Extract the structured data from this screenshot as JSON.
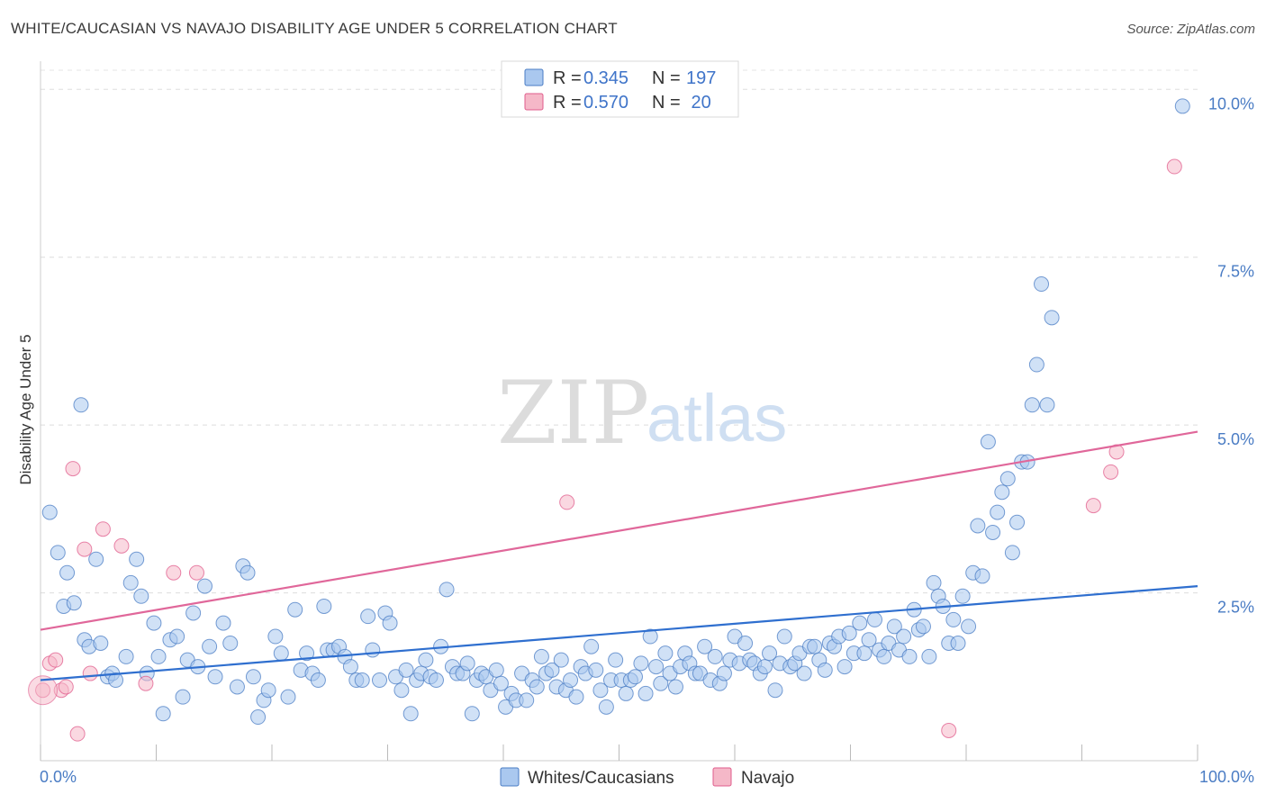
{
  "title": "WHITE/CAUCASIAN VS NAVAJO DISABILITY AGE UNDER 5 CORRELATION CHART",
  "source": "Source: ZipAtlas.com",
  "watermark": {
    "part1": "ZIP",
    "part2": "atlas"
  },
  "legend_top": [
    {
      "r_label": "R = ",
      "r_value": "0.345",
      "n_label": "N = ",
      "n_value": "197",
      "color": "#aac8ef"
    },
    {
      "r_label": "R = ",
      "r_value": "0.570",
      "n_label": "N = ",
      "n_value": " 20",
      "color": "#f5b8c8"
    }
  ],
  "legend_bottom": [
    {
      "label": "Whites/Caucasians",
      "color": "#aac8ef"
    },
    {
      "label": "Navajo",
      "color": "#f5b8c8"
    }
  ],
  "chart_data": {
    "type": "scatter",
    "title": "WHITE/CAUCASIAN VS NAVAJO DISABILITY AGE UNDER 5 CORRELATION CHART",
    "xlabel": "",
    "ylabel": "Disability Age Under 5",
    "xlim": [
      0,
      100
    ],
    "ylim": [
      0,
      10.5
    ],
    "x_tick_labels": [
      "0.0%",
      "100.0%"
    ],
    "y_ticks": [
      2.5,
      5.0,
      7.5,
      10.0
    ],
    "y_tick_labels": [
      "2.5%",
      "5.0%",
      "7.5%",
      "10.0%"
    ],
    "grid": true,
    "legend_position": "top-center",
    "series": [
      {
        "name": "Whites/Caucasians",
        "color": "#4a7cc4",
        "fill": "#aac8ef",
        "r": 0.345,
        "n": 197,
        "trend": [
          [
            0,
            1.2
          ],
          [
            100,
            2.6
          ]
        ],
        "points": [
          [
            0.8,
            3.7
          ],
          [
            1.5,
            3.1
          ],
          [
            2.0,
            2.3
          ],
          [
            2.3,
            2.8
          ],
          [
            2.9,
            2.35
          ],
          [
            3.5,
            5.3
          ],
          [
            3.8,
            1.8
          ],
          [
            4.2,
            1.7
          ],
          [
            4.8,
            3.0
          ],
          [
            5.2,
            1.75
          ],
          [
            5.8,
            1.25
          ],
          [
            6.2,
            1.3
          ],
          [
            6.5,
            1.2
          ],
          [
            7.4,
            1.55
          ],
          [
            7.8,
            2.65
          ],
          [
            8.3,
            3.0
          ],
          [
            8.7,
            2.45
          ],
          [
            9.2,
            1.3
          ],
          [
            9.8,
            2.05
          ],
          [
            10.2,
            1.55
          ],
          [
            10.6,
            0.7
          ],
          [
            11.2,
            1.8
          ],
          [
            11.8,
            1.85
          ],
          [
            12.3,
            0.95
          ],
          [
            12.7,
            1.5
          ],
          [
            13.2,
            2.2
          ],
          [
            13.6,
            1.4
          ],
          [
            14.2,
            2.6
          ],
          [
            14.6,
            1.7
          ],
          [
            15.1,
            1.25
          ],
          [
            15.8,
            2.05
          ],
          [
            16.4,
            1.75
          ],
          [
            17.0,
            1.1
          ],
          [
            17.5,
            2.9
          ],
          [
            17.9,
            2.8
          ],
          [
            18.4,
            1.25
          ],
          [
            18.8,
            0.65
          ],
          [
            19.3,
            0.9
          ],
          [
            19.7,
            1.05
          ],
          [
            20.3,
            1.85
          ],
          [
            20.8,
            1.6
          ],
          [
            21.4,
            0.95
          ],
          [
            22.0,
            2.25
          ],
          [
            22.5,
            1.35
          ],
          [
            23.0,
            1.6
          ],
          [
            23.5,
            1.3
          ],
          [
            24.0,
            1.2
          ],
          [
            24.5,
            2.3
          ],
          [
            24.8,
            1.65
          ],
          [
            25.3,
            1.65
          ],
          [
            25.8,
            1.7
          ],
          [
            26.3,
            1.55
          ],
          [
            26.8,
            1.4
          ],
          [
            27.3,
            1.2
          ],
          [
            27.8,
            1.2
          ],
          [
            28.3,
            2.15
          ],
          [
            28.7,
            1.65
          ],
          [
            29.3,
            1.2
          ],
          [
            29.8,
            2.2
          ],
          [
            30.2,
            2.05
          ],
          [
            30.7,
            1.25
          ],
          [
            31.2,
            1.05
          ],
          [
            31.6,
            1.35
          ],
          [
            32.0,
            0.7
          ],
          [
            32.5,
            1.2
          ],
          [
            32.9,
            1.3
          ],
          [
            33.3,
            1.5
          ],
          [
            33.7,
            1.25
          ],
          [
            34.2,
            1.2
          ],
          [
            34.6,
            1.7
          ],
          [
            35.1,
            2.55
          ],
          [
            35.6,
            1.4
          ],
          [
            36.0,
            1.3
          ],
          [
            36.5,
            1.3
          ],
          [
            36.9,
            1.45
          ],
          [
            37.3,
            0.7
          ],
          [
            37.7,
            1.2
          ],
          [
            38.1,
            1.3
          ],
          [
            38.5,
            1.25
          ],
          [
            38.9,
            1.05
          ],
          [
            39.4,
            1.35
          ],
          [
            39.8,
            1.15
          ],
          [
            40.2,
            0.8
          ],
          [
            40.7,
            1.0
          ],
          [
            41.1,
            0.9
          ],
          [
            41.6,
            1.3
          ],
          [
            42.0,
            0.9
          ],
          [
            42.5,
            1.2
          ],
          [
            42.9,
            1.1
          ],
          [
            43.3,
            1.55
          ],
          [
            43.7,
            1.3
          ],
          [
            44.2,
            1.35
          ],
          [
            44.6,
            1.1
          ],
          [
            45.0,
            1.5
          ],
          [
            45.4,
            1.05
          ],
          [
            45.8,
            1.2
          ],
          [
            46.3,
            0.95
          ],
          [
            46.7,
            1.4
          ],
          [
            47.1,
            1.3
          ],
          [
            47.6,
            1.7
          ],
          [
            48.0,
            1.35
          ],
          [
            48.4,
            1.05
          ],
          [
            48.9,
            0.8
          ],
          [
            49.3,
            1.2
          ],
          [
            49.7,
            1.5
          ],
          [
            50.2,
            1.2
          ],
          [
            50.6,
            1.0
          ],
          [
            51.0,
            1.2
          ],
          [
            51.4,
            1.25
          ],
          [
            51.9,
            1.45
          ],
          [
            52.3,
            1.0
          ],
          [
            52.7,
            1.85
          ],
          [
            53.2,
            1.4
          ],
          [
            53.6,
            1.15
          ],
          [
            54.0,
            1.6
          ],
          [
            54.4,
            1.3
          ],
          [
            54.9,
            1.1
          ],
          [
            55.3,
            1.4
          ],
          [
            55.7,
            1.6
          ],
          [
            56.1,
            1.45
          ],
          [
            56.6,
            1.3
          ],
          [
            57.0,
            1.3
          ],
          [
            57.4,
            1.7
          ],
          [
            57.9,
            1.2
          ],
          [
            58.3,
            1.55
          ],
          [
            58.7,
            1.15
          ],
          [
            59.1,
            1.3
          ],
          [
            59.6,
            1.5
          ],
          [
            60.0,
            1.85
          ],
          [
            60.4,
            1.45
          ],
          [
            60.9,
            1.75
          ],
          [
            61.3,
            1.5
          ],
          [
            61.7,
            1.45
          ],
          [
            62.2,
            1.3
          ],
          [
            62.6,
            1.4
          ],
          [
            63.0,
            1.6
          ],
          [
            63.5,
            1.05
          ],
          [
            63.9,
            1.45
          ],
          [
            64.3,
            1.85
          ],
          [
            64.8,
            1.4
          ],
          [
            65.2,
            1.45
          ],
          [
            65.6,
            1.6
          ],
          [
            66.0,
            1.3
          ],
          [
            66.5,
            1.7
          ],
          [
            66.9,
            1.7
          ],
          [
            67.3,
            1.5
          ],
          [
            67.8,
            1.35
          ],
          [
            68.2,
            1.75
          ],
          [
            68.6,
            1.7
          ],
          [
            69.0,
            1.85
          ],
          [
            69.5,
            1.4
          ],
          [
            69.9,
            1.9
          ],
          [
            70.3,
            1.6
          ],
          [
            70.8,
            2.05
          ],
          [
            71.2,
            1.6
          ],
          [
            71.6,
            1.8
          ],
          [
            72.1,
            2.1
          ],
          [
            72.5,
            1.65
          ],
          [
            72.9,
            1.55
          ],
          [
            73.3,
            1.75
          ],
          [
            73.8,
            2.0
          ],
          [
            74.2,
            1.65
          ],
          [
            74.6,
            1.85
          ],
          [
            75.1,
            1.55
          ],
          [
            75.5,
            2.25
          ],
          [
            75.9,
            1.95
          ],
          [
            76.3,
            2.0
          ],
          [
            76.8,
            1.55
          ],
          [
            77.2,
            2.65
          ],
          [
            77.6,
            2.45
          ],
          [
            78.0,
            2.3
          ],
          [
            78.5,
            1.75
          ],
          [
            78.9,
            2.1
          ],
          [
            79.3,
            1.75
          ],
          [
            79.7,
            2.45
          ],
          [
            80.2,
            2.0
          ],
          [
            80.6,
            2.8
          ],
          [
            81.0,
            3.5
          ],
          [
            81.4,
            2.75
          ],
          [
            81.9,
            4.75
          ],
          [
            82.3,
            3.4
          ],
          [
            82.7,
            3.7
          ],
          [
            83.1,
            4.0
          ],
          [
            83.6,
            4.2
          ],
          [
            84.0,
            3.1
          ],
          [
            84.4,
            3.55
          ],
          [
            84.8,
            4.45
          ],
          [
            85.3,
            4.45
          ],
          [
            85.7,
            5.3
          ],
          [
            86.1,
            5.9
          ],
          [
            86.5,
            7.1
          ],
          [
            87.0,
            5.3
          ],
          [
            87.4,
            6.6
          ],
          [
            98.7,
            9.75
          ]
        ]
      },
      {
        "name": "Navajo",
        "color": "#e05c8c",
        "fill": "#f5b8c8",
        "r": 0.57,
        "n": 20,
        "trend": [
          [
            0,
            1.95
          ],
          [
            100,
            4.9
          ]
        ],
        "points": [
          [
            0.2,
            1.05
          ],
          [
            0.8,
            1.45
          ],
          [
            1.3,
            1.5
          ],
          [
            1.8,
            1.05
          ],
          [
            2.2,
            1.1
          ],
          [
            2.8,
            4.35
          ],
          [
            3.2,
            0.4
          ],
          [
            3.8,
            3.15
          ],
          [
            4.3,
            1.3
          ],
          [
            5.4,
            3.45
          ],
          [
            7.0,
            3.2
          ],
          [
            9.1,
            1.15
          ],
          [
            11.5,
            2.8
          ],
          [
            13.5,
            2.8
          ],
          [
            45.5,
            3.85
          ],
          [
            78.5,
            0.45
          ],
          [
            91.0,
            3.8
          ],
          [
            92.5,
            4.3
          ],
          [
            93.0,
            4.6
          ],
          [
            98.0,
            8.85
          ]
        ]
      }
    ]
  }
}
